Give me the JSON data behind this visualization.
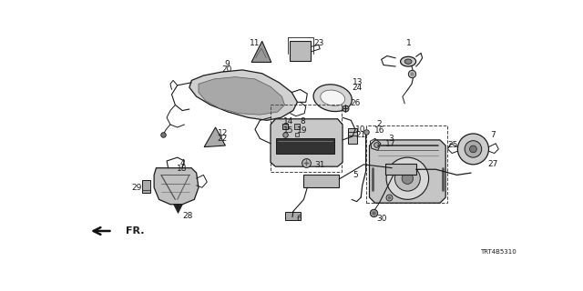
{
  "background_color": "#ffffff",
  "diagram_code": "TRT4B5310",
  "fr_label": "FR.",
  "line_color": "#1a1a1a",
  "text_color": "#1a1a1a"
}
